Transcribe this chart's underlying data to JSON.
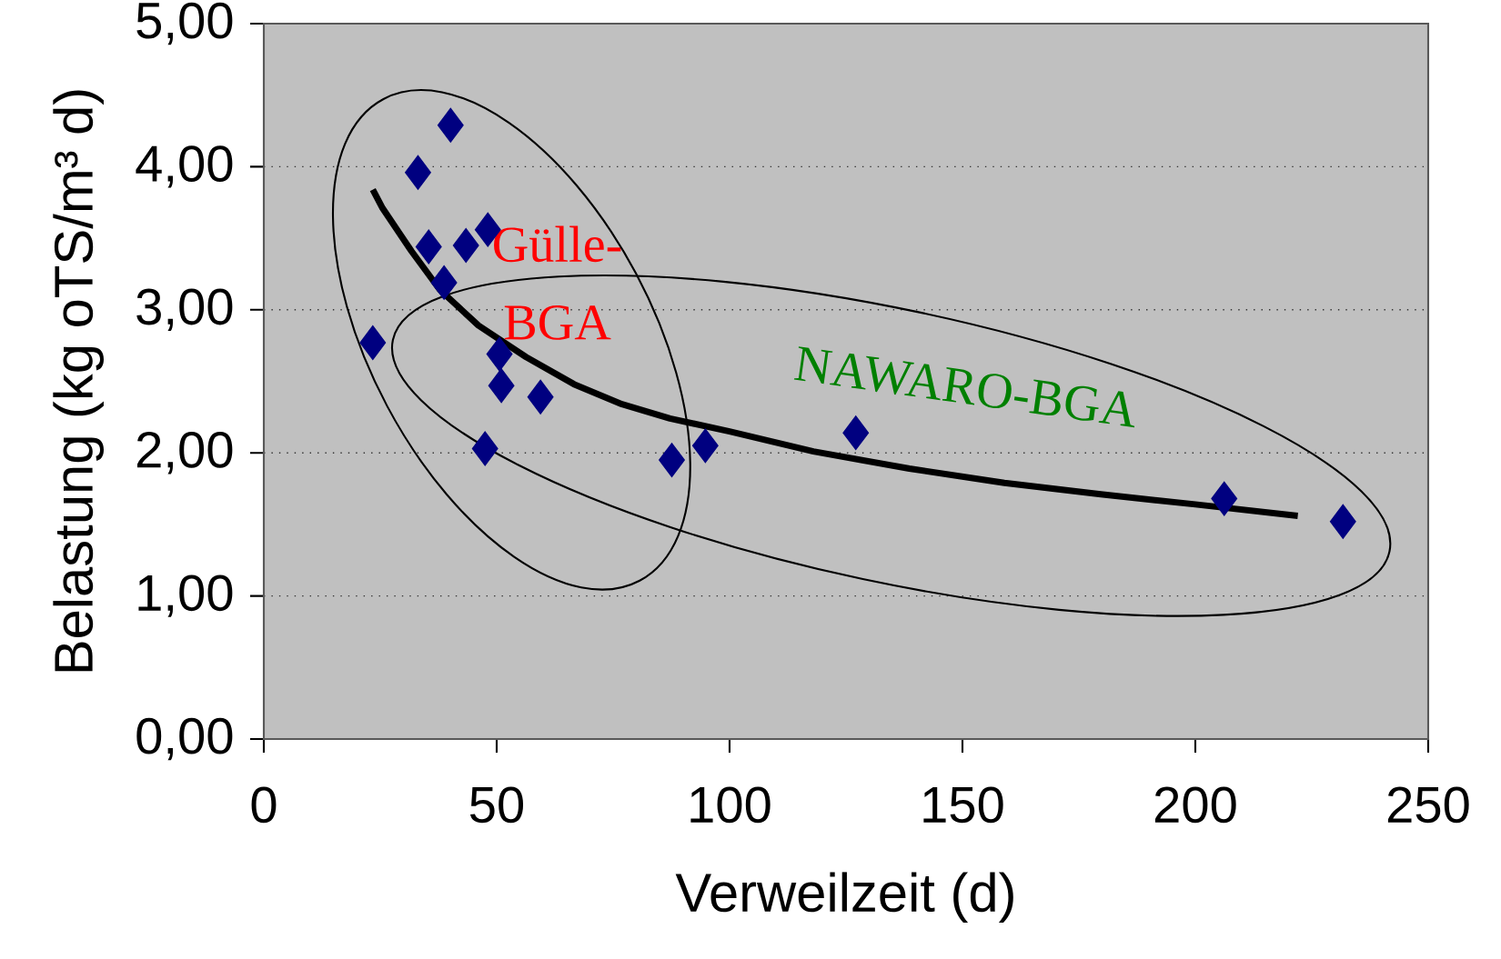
{
  "chart_data": {
    "type": "scatter",
    "xlabel": "Verweilzeit (d)",
    "ylabel": "Belastung (kg oTS/m³ d)",
    "xlim": [
      0,
      250
    ],
    "ylim": [
      0,
      5
    ],
    "xticks": [
      0,
      50,
      100,
      150,
      200,
      250
    ],
    "yticks": [
      {
        "value": 0,
        "label": "0,00"
      },
      {
        "value": 1,
        "label": "1,00"
      },
      {
        "value": 2,
        "label": "2,00"
      },
      {
        "value": 3,
        "label": "3,00"
      },
      {
        "value": 4,
        "label": "4,00"
      },
      {
        "value": 5,
        "label": "5,00"
      }
    ],
    "grid": "y",
    "series": [
      {
        "color": "#000080",
        "marker": "diamond",
        "x": [
          23.4,
          33.1,
          40.1,
          35.4,
          43.4,
          48.1,
          38.7,
          50.6,
          51.0,
          59.4,
          47.5,
          87.6,
          94.8,
          127.1,
          206.2,
          231.7
        ],
        "values": [
          2.77,
          3.96,
          4.29,
          3.44,
          3.45,
          3.56,
          3.19,
          2.69,
          2.47,
          2.39,
          2.03,
          1.95,
          2.05,
          2.14,
          1.68,
          1.52
        ]
      },
      {
        "type": "line",
        "color": "#000000",
        "marker": "none",
        "line_style": "solid",
        "x": [
          23.4,
          25.5,
          31.7,
          37.8,
          46.1,
          56.3,
          66.6,
          76.9,
          87.2,
          100,
          118,
          138.6,
          159,
          179.7,
          200,
          222
        ],
        "values": [
          3.84,
          3.71,
          3.41,
          3.14,
          2.89,
          2.67,
          2.48,
          2.34,
          2.24,
          2.15,
          2.01,
          1.89,
          1.79,
          1.71,
          1.64,
          1.56
        ]
      }
    ],
    "annotations": [
      "Gülle-",
      "BGA",
      "NAWARO-BGA"
    ]
  }
}
